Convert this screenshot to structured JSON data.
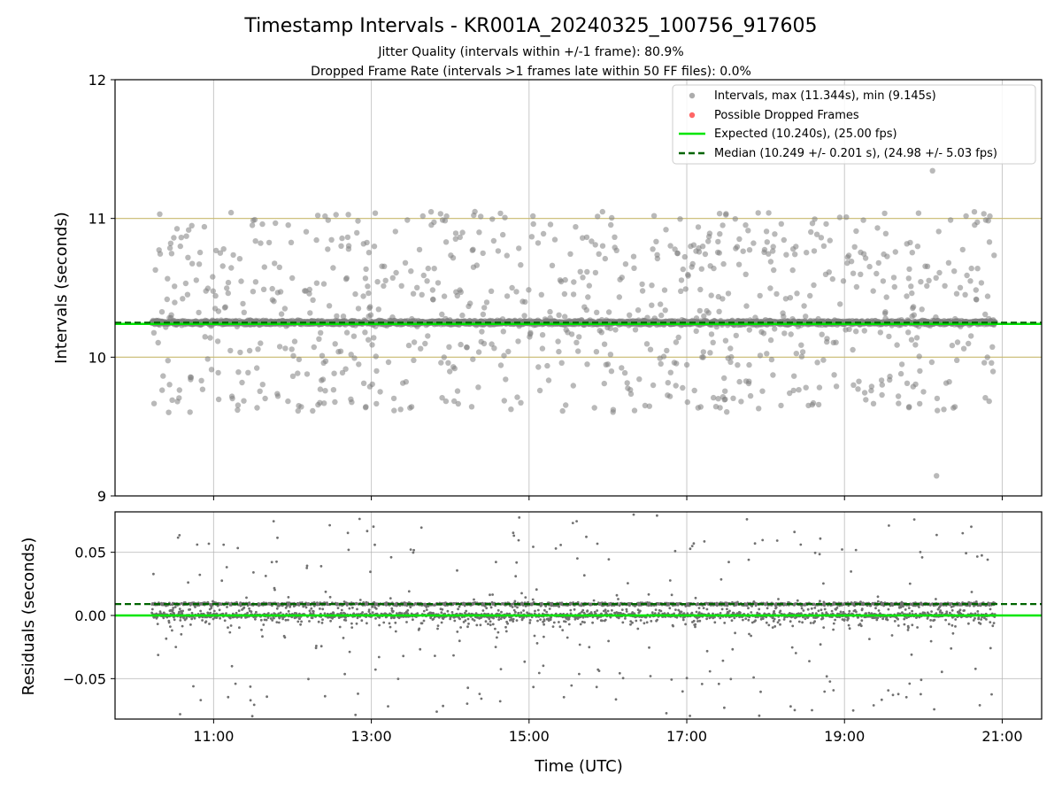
{
  "chart_data": [
    {
      "type": "scatter",
      "title": "Timestamp Intervals - KR001A_20240325_100756_917605",
      "subtitle_1": "Jitter Quality (intervals within +/-1 frame): 80.9%",
      "subtitle_2": "Dropped Frame Rate (intervals >1 frames late within 50 FF files): 0.0%",
      "ylabel": "Intervals (seconds)",
      "ylim": [
        9,
        12
      ],
      "yticks": [
        "9",
        "10",
        "11",
        "12"
      ],
      "xlim": [
        "09:45",
        "21:30"
      ],
      "grid": true,
      "legend_position": "top-right",
      "legend": [
        {
          "label": "Intervals, max (11.344s), min (9.145s)",
          "marker": "gray-dot"
        },
        {
          "label": "Possible Dropped Frames",
          "marker": "red-dot"
        },
        {
          "label": "Expected (10.240s), (25.00 fps)",
          "marker": "green-line"
        },
        {
          "label": "Median (10.249 +/- 0.201 s), (24.98 +/- 5.03 fps)",
          "marker": "dark-green-dashed-line"
        }
      ],
      "expected": 10.24,
      "median": 10.249,
      "tolerance_lines": [
        10.0,
        11.0
      ],
      "series_color": "#808080",
      "expected_color": "#00e600",
      "median_color": "#006400",
      "tolerance_color": "#c8b96e",
      "time_start": "10:13",
      "time_end": "20:55",
      "max": 11.344,
      "min": 9.145,
      "typical_interval_s": 10.24,
      "points_note": "Dense scatter of per-frame interval values around 10.24 s, with outliers spread between 9.15 and 11.34 s."
    },
    {
      "type": "scatter",
      "ylabel": "Residuals (seconds)",
      "xlabel": "Time (UTC)",
      "ylim": [
        -0.082,
        0.082
      ],
      "yticks": [
        "−0.05",
        "0.00",
        "0.05"
      ],
      "xticks": [
        "11:00",
        "13:00",
        "15:00",
        "17:00",
        "19:00",
        "21:00"
      ],
      "grid": true,
      "zero_line_color": "#00e600",
      "median_residual": 0.009,
      "median_color": "#006400",
      "series_color": "#707070"
    }
  ]
}
